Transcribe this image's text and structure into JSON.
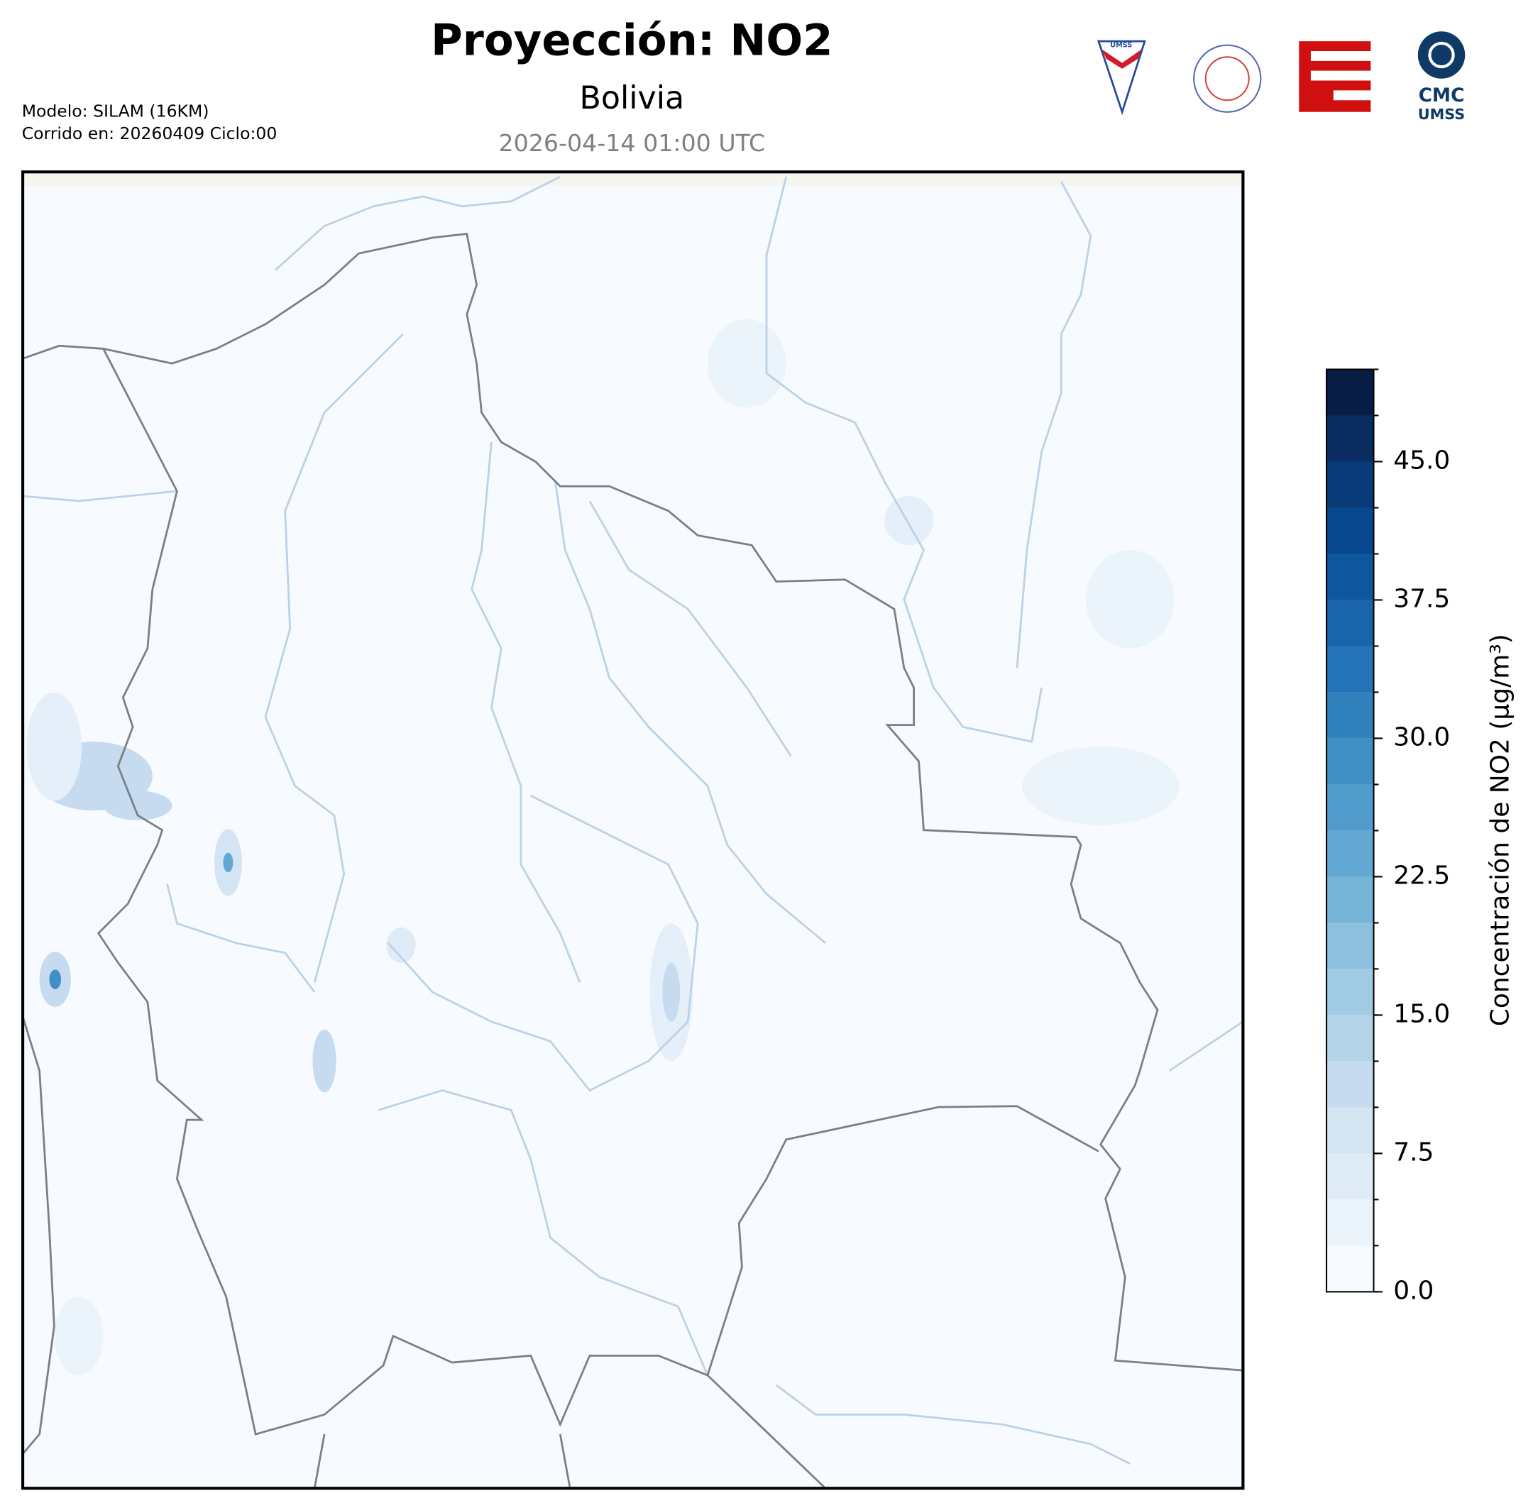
{
  "header": {
    "title": "Proyección: NO2",
    "subtitle": "Bolivia",
    "date": "2026-04-14 01:00 UTC",
    "model": "Modelo: SILAM (16KM)",
    "run": "Corrido en: 20260409 Ciclo:00"
  },
  "logos": {
    "umss": "UMSS",
    "cmc": "CMC",
    "cmc_sub": "UMSS"
  },
  "colorbar": {
    "label": "Concentración de NO2 (µg/m³)",
    "lim": [
      0,
      50
    ],
    "levels": [
      0,
      2.5,
      5,
      7.5,
      10,
      12.5,
      15,
      17.5,
      20,
      22.5,
      25,
      27.5,
      30,
      32.5,
      35,
      37.5,
      40,
      42.5,
      45,
      47.5,
      50
    ],
    "colors": [
      "#f7fbff",
      "#ebf3fb",
      "#dfecf7",
      "#d3e4f3",
      "#c6dbef",
      "#b5d4e9",
      "#a1cbe2",
      "#8dc0dd",
      "#76b4d8",
      "#62a8d3",
      "#519ccc",
      "#4190c5",
      "#3181bd",
      "#2373b6",
      "#1865ab",
      "#0e579f",
      "#08488e",
      "#0a3a78",
      "#0a2c61",
      "#081d45"
    ],
    "ticks": [
      {
        "value": 0,
        "label": "0.0"
      },
      {
        "value": 7.5,
        "label": "7.5"
      },
      {
        "value": 15,
        "label": "15.0"
      },
      {
        "value": 22.5,
        "label": "22.5"
      },
      {
        "value": 30,
        "label": "30.0"
      },
      {
        "value": 37.5,
        "label": "37.5"
      },
      {
        "value": 45,
        "label": "45.0"
      }
    ]
  }
}
